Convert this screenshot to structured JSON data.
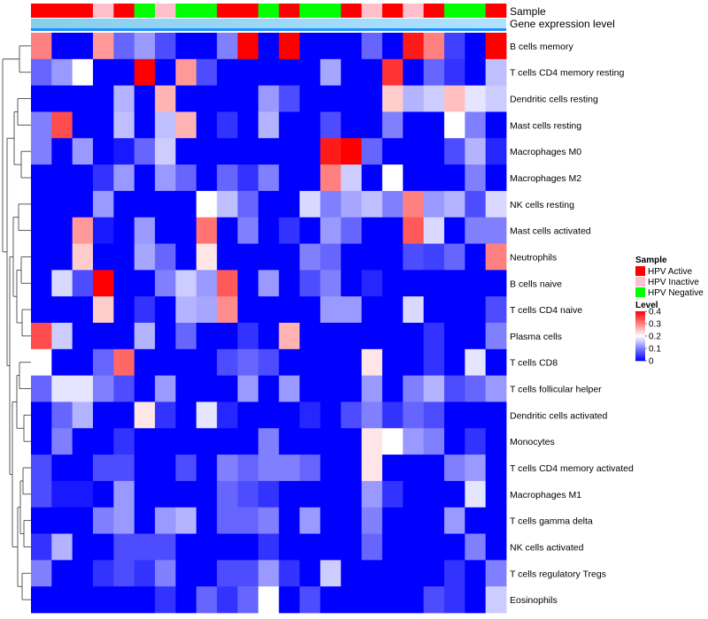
{
  "chart_data": {
    "type": "heatmap",
    "title": "",
    "annotation_tracks": [
      {
        "name": "Sample",
        "label": "Sample"
      },
      {
        "name": "Gene expression level",
        "label": "Gene expression level"
      }
    ],
    "samples": [
      {
        "id": "s1",
        "sample": "HPV Active"
      },
      {
        "id": "s2",
        "sample": "HPV Active"
      },
      {
        "id": "s3",
        "sample": "HPV Active"
      },
      {
        "id": "s4",
        "sample": "HPV Inactive"
      },
      {
        "id": "s5",
        "sample": "HPV Active"
      },
      {
        "id": "s6",
        "sample": "HPV Negative"
      },
      {
        "id": "s7",
        "sample": "HPV Inactive"
      },
      {
        "id": "s8",
        "sample": "HPV Negative"
      },
      {
        "id": "s9",
        "sample": "HPV Negative"
      },
      {
        "id": "s10",
        "sample": "HPV Active"
      },
      {
        "id": "s11",
        "sample": "HPV Active"
      },
      {
        "id": "s12",
        "sample": "HPV Negative"
      },
      {
        "id": "s13",
        "sample": "HPV Active"
      },
      {
        "id": "s14",
        "sample": "HPV Negative"
      },
      {
        "id": "s15",
        "sample": "HPV Negative"
      },
      {
        "id": "s16",
        "sample": "HPV Active"
      },
      {
        "id": "s17",
        "sample": "HPV Inactive"
      },
      {
        "id": "s18",
        "sample": "HPV Active"
      },
      {
        "id": "s19",
        "sample": "HPV Inactive"
      },
      {
        "id": "s20",
        "sample": "HPV Active"
      },
      {
        "id": "s21",
        "sample": "HPV Negative"
      },
      {
        "id": "s22",
        "sample": "HPV Negative"
      },
      {
        "id": "s23",
        "sample": "HPV Active"
      }
    ],
    "rows": [
      "B cells memory",
      "T cells CD4 memory resting",
      "Dendritic cells resting",
      "Mast cells resting",
      "Macrophages M0",
      "Macrophages M2",
      "NK cells resting",
      "Mast cells activated",
      "Neutrophils",
      "B cells naive",
      "T cells CD4 naive",
      "Plasma cells",
      "T cells CD8",
      "T cells follicular helper",
      "Dendritic cells activated",
      "Monocytes",
      "T cells CD4 memory activated",
      "Macrophages M1",
      "T cells gamma delta",
      "NK cells activated",
      "T cells regulatory  Tregs",
      "Eosinophils"
    ],
    "values": [
      [
        0.3,
        0,
        0,
        0.28,
        0.08,
        0.12,
        0.06,
        0,
        0,
        0.1,
        0.4,
        0,
        0.4,
        0,
        0,
        0,
        0.08,
        0,
        0.38,
        0.3,
        0.05,
        0,
        0.4
      ],
      [
        0.08,
        0.12,
        0.2,
        0,
        0,
        0.4,
        0,
        0.28,
        0.06,
        0,
        0,
        0,
        0,
        0,
        0.13,
        0,
        0,
        0.36,
        0,
        0.08,
        0.04,
        0,
        0.15
      ],
      [
        0,
        0,
        0,
        0,
        0.14,
        0,
        0.26,
        0,
        0,
        0,
        0,
        0.12,
        0.06,
        0,
        0,
        0,
        0,
        0.24,
        0.14,
        0.16,
        0.25,
        0.18,
        0.16
      ],
      [
        0.1,
        0.34,
        0,
        0,
        0.15,
        0,
        0.15,
        0.26,
        0,
        0.04,
        0,
        0.14,
        0,
        0,
        0.06,
        0,
        0,
        0.1,
        0,
        0,
        0.2,
        0.1,
        0
      ],
      [
        0.1,
        0,
        0.12,
        0,
        0.02,
        0.08,
        0.16,
        0,
        0,
        0,
        0,
        0,
        0,
        0,
        0.38,
        0.4,
        0.08,
        0,
        0,
        0,
        0.06,
        0.14,
        0.03
      ],
      [
        0,
        0,
        0,
        0.04,
        0.12,
        0,
        0.12,
        0.08,
        0,
        0.08,
        0.04,
        0.1,
        0,
        0,
        0.3,
        0.16,
        0,
        0.2,
        0,
        0,
        0,
        0.1,
        0
      ],
      [
        0,
        0,
        0,
        0.12,
        0,
        0,
        0,
        0,
        0.2,
        0.15,
        0.08,
        0,
        0,
        0.17,
        0.1,
        0.13,
        0.15,
        0.1,
        0.3,
        0.12,
        0.14,
        0.06,
        0.17
      ],
      [
        0,
        0,
        0.28,
        0.02,
        0,
        0.12,
        0,
        0,
        0.31,
        0,
        0.1,
        0,
        0.04,
        0,
        0.12,
        0.08,
        0,
        0,
        0.33,
        0.17,
        0,
        0.1,
        0.1
      ],
      [
        0,
        0,
        0.24,
        0,
        0,
        0.13,
        0.08,
        0,
        0.22,
        0,
        0,
        0,
        0,
        0.1,
        0.08,
        0,
        0,
        0,
        0.06,
        0.05,
        0.08,
        0,
        0.3
      ],
      [
        0,
        0.17,
        0.06,
        0.4,
        0,
        0,
        0.1,
        0.16,
        0.12,
        0.33,
        0,
        0.12,
        0,
        0.06,
        0.1,
        0,
        0.03,
        0,
        0,
        0,
        0,
        0,
        0
      ],
      [
        0,
        0,
        0,
        0.24,
        0,
        0.04,
        0,
        0.14,
        0.13,
        0.29,
        0,
        0,
        0,
        0,
        0.12,
        0.12,
        0,
        0,
        0.17,
        0,
        0,
        0,
        0.06
      ],
      [
        0.34,
        0.16,
        0,
        0,
        0,
        0.14,
        0,
        0.08,
        0,
        0,
        0.04,
        0,
        0.26,
        0,
        0,
        0,
        0,
        0,
        0,
        0.04,
        0,
        0,
        0.1
      ],
      [
        0.2,
        0,
        0,
        0.08,
        0.32,
        0,
        0,
        0,
        0,
        0.06,
        0.08,
        0.06,
        0,
        0,
        0,
        0,
        0.22,
        0,
        0,
        0.04,
        0,
        0.18,
        0
      ],
      [
        0.08,
        0.18,
        0.18,
        0.1,
        0.06,
        0,
        0.12,
        0,
        0,
        0,
        0.12,
        0,
        0.12,
        0,
        0,
        0,
        0.12,
        0,
        0.1,
        0.14,
        0.06,
        0.08,
        0.12
      ],
      [
        0,
        0.08,
        0.14,
        0,
        0,
        0.22,
        0.04,
        0,
        0.18,
        0.03,
        0,
        0,
        0,
        0.03,
        0,
        0.06,
        0.1,
        0.04,
        0.08,
        0.06,
        0,
        0,
        0
      ],
      [
        0,
        0.1,
        0,
        0,
        0.04,
        0,
        0,
        0,
        0,
        0,
        0,
        0.1,
        0,
        0,
        0,
        0,
        0.22,
        0.2,
        0.12,
        0.1,
        0,
        0.04,
        0
      ],
      [
        0.06,
        0,
        0,
        0.06,
        0.06,
        0,
        0,
        0.06,
        0,
        0.1,
        0.08,
        0.1,
        0.1,
        0.08,
        0,
        0,
        0.22,
        0,
        0,
        0,
        0.1,
        0.12,
        0
      ],
      [
        0.06,
        0.02,
        0.02,
        0,
        0.12,
        0,
        0,
        0,
        0,
        0.08,
        0.06,
        0.04,
        0,
        0,
        0,
        0,
        0.12,
        0.04,
        0,
        0,
        0,
        0.18,
        0
      ],
      [
        0,
        0,
        0,
        0.1,
        0.12,
        0,
        0.12,
        0.14,
        0,
        0.08,
        0.08,
        0.1,
        0,
        0.12,
        0,
        0,
        0.1,
        0,
        0,
        0,
        0.12,
        0,
        0
      ],
      [
        0.04,
        0.14,
        0,
        0,
        0.06,
        0.06,
        0.06,
        0,
        0,
        0,
        0,
        0.04,
        0,
        0,
        0,
        0,
        0.08,
        0,
        0,
        0,
        0,
        0.1,
        0
      ],
      [
        0.1,
        0,
        0,
        0.04,
        0.06,
        0.04,
        0.1,
        0,
        0,
        0.06,
        0.06,
        0.12,
        0.04,
        0,
        0.16,
        0,
        0,
        0,
        0,
        0,
        0.04,
        0,
        0.1
      ],
      [
        0,
        0,
        0,
        0,
        0,
        0,
        0.04,
        0,
        0.08,
        0.04,
        0.08,
        0.2,
        0,
        0.06,
        0,
        0,
        0,
        0,
        0,
        0.06,
        0.04,
        0,
        0.16
      ]
    ],
    "scale": {
      "min": 0,
      "max": 0.4,
      "low_color": "#0000ff",
      "mid_color": "#ffffff",
      "high_color": "#ff0000"
    },
    "legend": {
      "sample": {
        "title": "Sample",
        "entries": [
          {
            "label": "HPV Active",
            "color": "#ff0000"
          },
          {
            "label": "HPV Inactive",
            "color": "#ffc0cb"
          },
          {
            "label": "HPV Negative",
            "color": "#00ff00"
          }
        ]
      },
      "level": {
        "title": "Level",
        "ticks": [
          {
            "label": "0.4",
            "value": 0.4
          },
          {
            "label": "0.3",
            "value": 0.3
          },
          {
            "label": "0.2",
            "value": 0.2
          },
          {
            "label": "0.1",
            "value": 0.1
          },
          {
            "label": "0",
            "value": 0
          }
        ]
      }
    },
    "gene_expression_colors": {
      "left": "#87ceeb",
      "right": "#b0e2ff"
    },
    "xlabel": "",
    "ylabel": ""
  }
}
